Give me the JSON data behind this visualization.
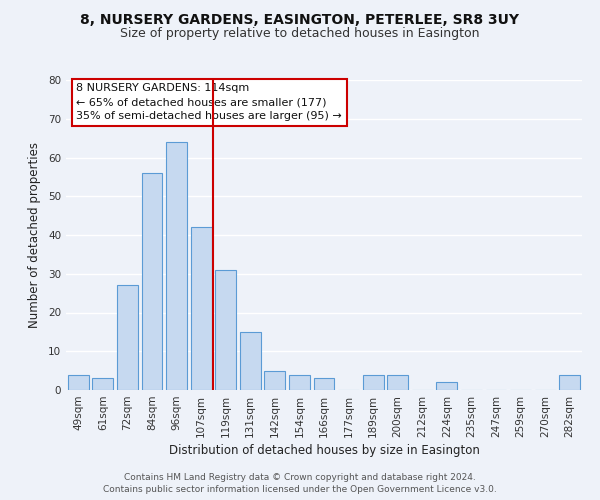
{
  "title": "8, NURSERY GARDENS, EASINGTON, PETERLEE, SR8 3UY",
  "subtitle": "Size of property relative to detached houses in Easington",
  "xlabel": "Distribution of detached houses by size in Easington",
  "ylabel": "Number of detached properties",
  "categories": [
    "49sqm",
    "61sqm",
    "72sqm",
    "84sqm",
    "96sqm",
    "107sqm",
    "119sqm",
    "131sqm",
    "142sqm",
    "154sqm",
    "166sqm",
    "177sqm",
    "189sqm",
    "200sqm",
    "212sqm",
    "224sqm",
    "235sqm",
    "247sqm",
    "259sqm",
    "270sqm",
    "282sqm"
  ],
  "values": [
    4,
    3,
    27,
    56,
    64,
    42,
    31,
    15,
    5,
    4,
    3,
    0,
    4,
    4,
    0,
    2,
    0,
    0,
    0,
    0,
    4
  ],
  "bar_color": "#c6d9f0",
  "bar_edge_color": "#5b9bd5",
  "vline_x_index": 5.5,
  "vline_color": "#cc0000",
  "ylim": [
    0,
    80
  ],
  "yticks": [
    0,
    10,
    20,
    30,
    40,
    50,
    60,
    70,
    80
  ],
  "annotation_line1": "8 NURSERY GARDENS: 114sqm",
  "annotation_line2": "← 65% of detached houses are smaller (177)",
  "annotation_line3": "35% of semi-detached houses are larger (95) →",
  "footer_line1": "Contains HM Land Registry data © Crown copyright and database right 2024.",
  "footer_line2": "Contains public sector information licensed under the Open Government Licence v3.0.",
  "background_color": "#eef2f9",
  "grid_color": "#ffffff",
  "title_fontsize": 10,
  "subtitle_fontsize": 9,
  "axis_label_fontsize": 8.5,
  "tick_fontsize": 7.5,
  "annotation_fontsize": 8,
  "footer_fontsize": 6.5
}
